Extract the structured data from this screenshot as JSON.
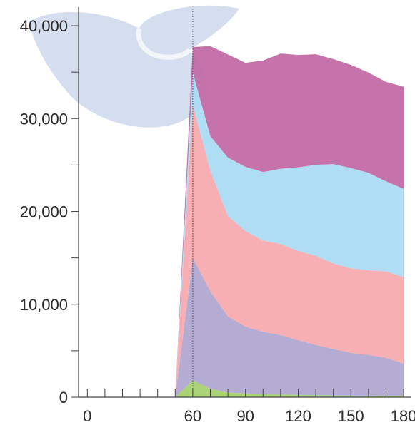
{
  "chart_data": {
    "type": "area",
    "stacked": true,
    "title": "",
    "xlabel": "",
    "ylabel": "",
    "xlim": [
      -5,
      182
    ],
    "ylim": [
      0,
      42000
    ],
    "x_ticks": [
      0,
      60,
      90,
      120,
      150,
      180
    ],
    "x_tick_labels": [
      "0",
      "60",
      "90",
      "120",
      "150",
      "180"
    ],
    "x_minor_ticks": [
      10,
      20,
      30,
      40,
      50,
      70,
      80,
      100,
      110,
      130,
      140,
      160,
      170
    ],
    "y_ticks": [
      0,
      10000,
      20000,
      30000,
      40000
    ],
    "y_tick_labels": [
      "0",
      "10,000",
      "20,000",
      "30,000",
      "40,000"
    ],
    "y_minor_ticks": [
      5000,
      15000,
      25000,
      35000
    ],
    "grid": false,
    "legend": "none",
    "reference_line_x": 60,
    "x": [
      50,
      60,
      70,
      80,
      90,
      100,
      110,
      120,
      130,
      140,
      150,
      160,
      170,
      180
    ],
    "series": [
      {
        "color": "#a2cf6a",
        "values": [
          0,
          1800,
          900,
          500,
          400,
          350,
          300,
          250,
          220,
          200,
          180,
          160,
          150,
          130
        ]
      },
      {
        "color": "#afa5cf",
        "values": [
          0,
          13200,
          10500,
          8200,
          7200,
          6700,
          6400,
          5900,
          5400,
          5000,
          4600,
          4400,
          4100,
          3500
        ]
      },
      {
        "color": "#f7a8ad",
        "values": [
          0,
          16500,
          13000,
          10800,
          10300,
          9800,
          9800,
          9600,
          9600,
          9200,
          9100,
          9100,
          9300,
          9300
        ]
      },
      {
        "color": "#a8daf3",
        "values": [
          0,
          3500,
          3700,
          6300,
          6900,
          7400,
          8100,
          9000,
          9800,
          10700,
          10800,
          10500,
          9700,
          9500
        ]
      },
      {
        "color": "#c167a4",
        "values": [
          0,
          2700,
          9700,
          11100,
          11200,
          12000,
          12400,
          12100,
          11900,
          11300,
          11100,
          10800,
          10700,
          11000
        ]
      }
    ]
  },
  "watermark": {
    "color": "#7d9ccb"
  }
}
